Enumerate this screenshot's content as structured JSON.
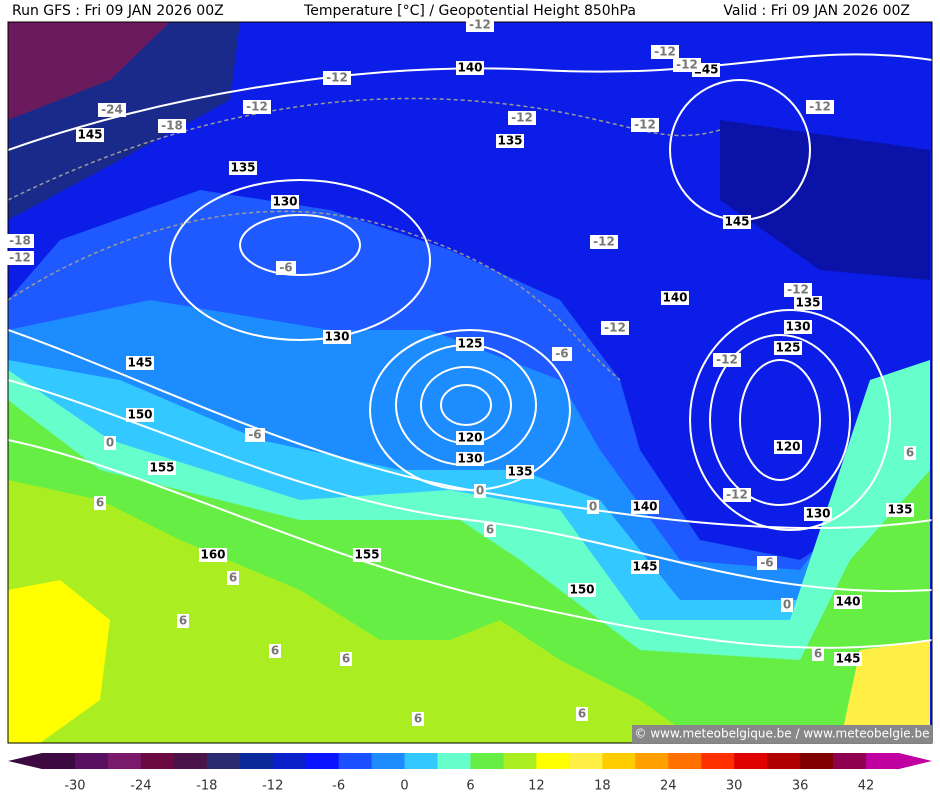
{
  "header": {
    "left": "Run GFS : Fri 09 JAN 2026 00Z",
    "center": "Temperature [°C] / Geopotential Height 850hPa",
    "right": "Valid : Fri 09 JAN 2026 00Z"
  },
  "height_labels": [
    "140",
    "135",
    "135",
    "130",
    "130",
    "125",
    "120",
    "130",
    "135",
    "145",
    "150",
    "155",
    "160",
    "155",
    "150",
    "145",
    "140",
    "140",
    "145",
    "145",
    "145",
    "135",
    "130",
    "125",
    "120",
    "130",
    "135",
    "140",
    "145"
  ],
  "temperature_labels": [
    "-12",
    "-24",
    "-18",
    "-12",
    "-12",
    "-12",
    "-12",
    "-12",
    "-12",
    "-12",
    "-12",
    "-12",
    "-12",
    "-12",
    "-6",
    "-6",
    "-6",
    "-6",
    "0",
    "0",
    "0",
    "0",
    "6",
    "6",
    "6",
    "6",
    "6",
    "6",
    "6",
    "6",
    "6",
    "6",
    "-18",
    "-12",
    "-12"
  ],
  "colorbar": {
    "labels": [
      "-30",
      "-24",
      "-18",
      "-12",
      "-6",
      "0",
      "6",
      "12",
      "18",
      "24",
      "30",
      "36",
      "42"
    ],
    "colors": [
      "#3c0a40",
      "#5a1060",
      "#7a1a6a",
      "#6a0a40",
      "#4a1448",
      "#2a2a70",
      "#0a2a9a",
      "#0a20c8",
      "#0a14ff",
      "#1a50ff",
      "#1e8cff",
      "#33c8ff",
      "#66ffcc",
      "#66ee44",
      "#aaee22",
      "#ffff00",
      "#ffee44",
      "#ffcc00",
      "#ffa000",
      "#ff7000",
      "#ff3000",
      "#e00000",
      "#b00000",
      "#800000",
      "#900050",
      "#c000a0"
    ]
  },
  "watermark": "© www.meteobelgique.be / www.meteobelgie.be"
}
